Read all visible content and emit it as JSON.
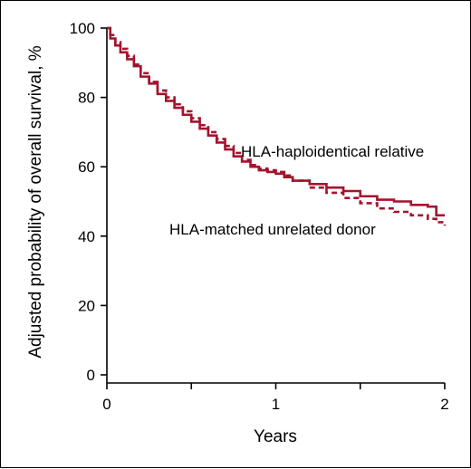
{
  "chart_data": {
    "type": "line",
    "title": "",
    "xlabel": "Years",
    "ylabel": "Adjusted probability of overall survival, %",
    "xlim": [
      0,
      2
    ],
    "ylim": [
      0,
      100
    ],
    "x_ticks": [
      0,
      0.5,
      1,
      1.5,
      2
    ],
    "x_tick_labels": [
      "0",
      "",
      "1",
      "",
      "2"
    ],
    "y_ticks": [
      0,
      20,
      40,
      60,
      80,
      100
    ],
    "y_tick_labels": [
      "0",
      "20",
      "40",
      "60",
      "80",
      "100"
    ],
    "grid": false,
    "legend": "direct labels",
    "series": [
      {
        "name": "HLA-haploidentical relative",
        "style": "solid",
        "color": "#a3142e",
        "x": [
          0,
          0.02,
          0.05,
          0.08,
          0.12,
          0.16,
          0.2,
          0.25,
          0.3,
          0.35,
          0.4,
          0.45,
          0.5,
          0.55,
          0.6,
          0.65,
          0.7,
          0.75,
          0.8,
          0.85,
          0.9,
          0.95,
          1.0,
          1.05,
          1.1,
          1.2,
          1.3,
          1.4,
          1.5,
          1.6,
          1.7,
          1.8,
          1.9,
          1.95,
          2.0
        ],
        "y": [
          100,
          97,
          95,
          93,
          91,
          89,
          86,
          84,
          81,
          79,
          77,
          75,
          73,
          71,
          69,
          67,
          65,
          63,
          61.5,
          60,
          59,
          58.5,
          58,
          57,
          56,
          55,
          54,
          53,
          51.5,
          50.5,
          50,
          49,
          48.5,
          46,
          46
        ]
      },
      {
        "name": "HLA-matched unrelated donor",
        "style": "dashed",
        "color": "#a3142e",
        "x": [
          0,
          0.02,
          0.05,
          0.08,
          0.12,
          0.16,
          0.2,
          0.25,
          0.3,
          0.35,
          0.4,
          0.45,
          0.5,
          0.55,
          0.6,
          0.65,
          0.7,
          0.75,
          0.8,
          0.85,
          0.9,
          0.95,
          1.0,
          1.05,
          1.1,
          1.2,
          1.3,
          1.4,
          1.5,
          1.6,
          1.7,
          1.8,
          1.9,
          1.95,
          2.0
        ],
        "y": [
          100,
          98,
          96,
          94,
          92,
          89.5,
          87,
          84.5,
          82,
          80,
          78,
          76,
          74,
          72,
          70,
          68,
          66,
          64,
          62,
          60.5,
          59.5,
          59,
          58.5,
          57.5,
          56,
          54,
          52.5,
          51,
          49.5,
          48,
          47,
          46,
          45,
          44,
          43
        ]
      }
    ],
    "annotations": [
      {
        "text": "HLA-haploidentical relative",
        "series": 0
      },
      {
        "text": "HLA-matched unrelated donor",
        "series": 1
      }
    ]
  }
}
